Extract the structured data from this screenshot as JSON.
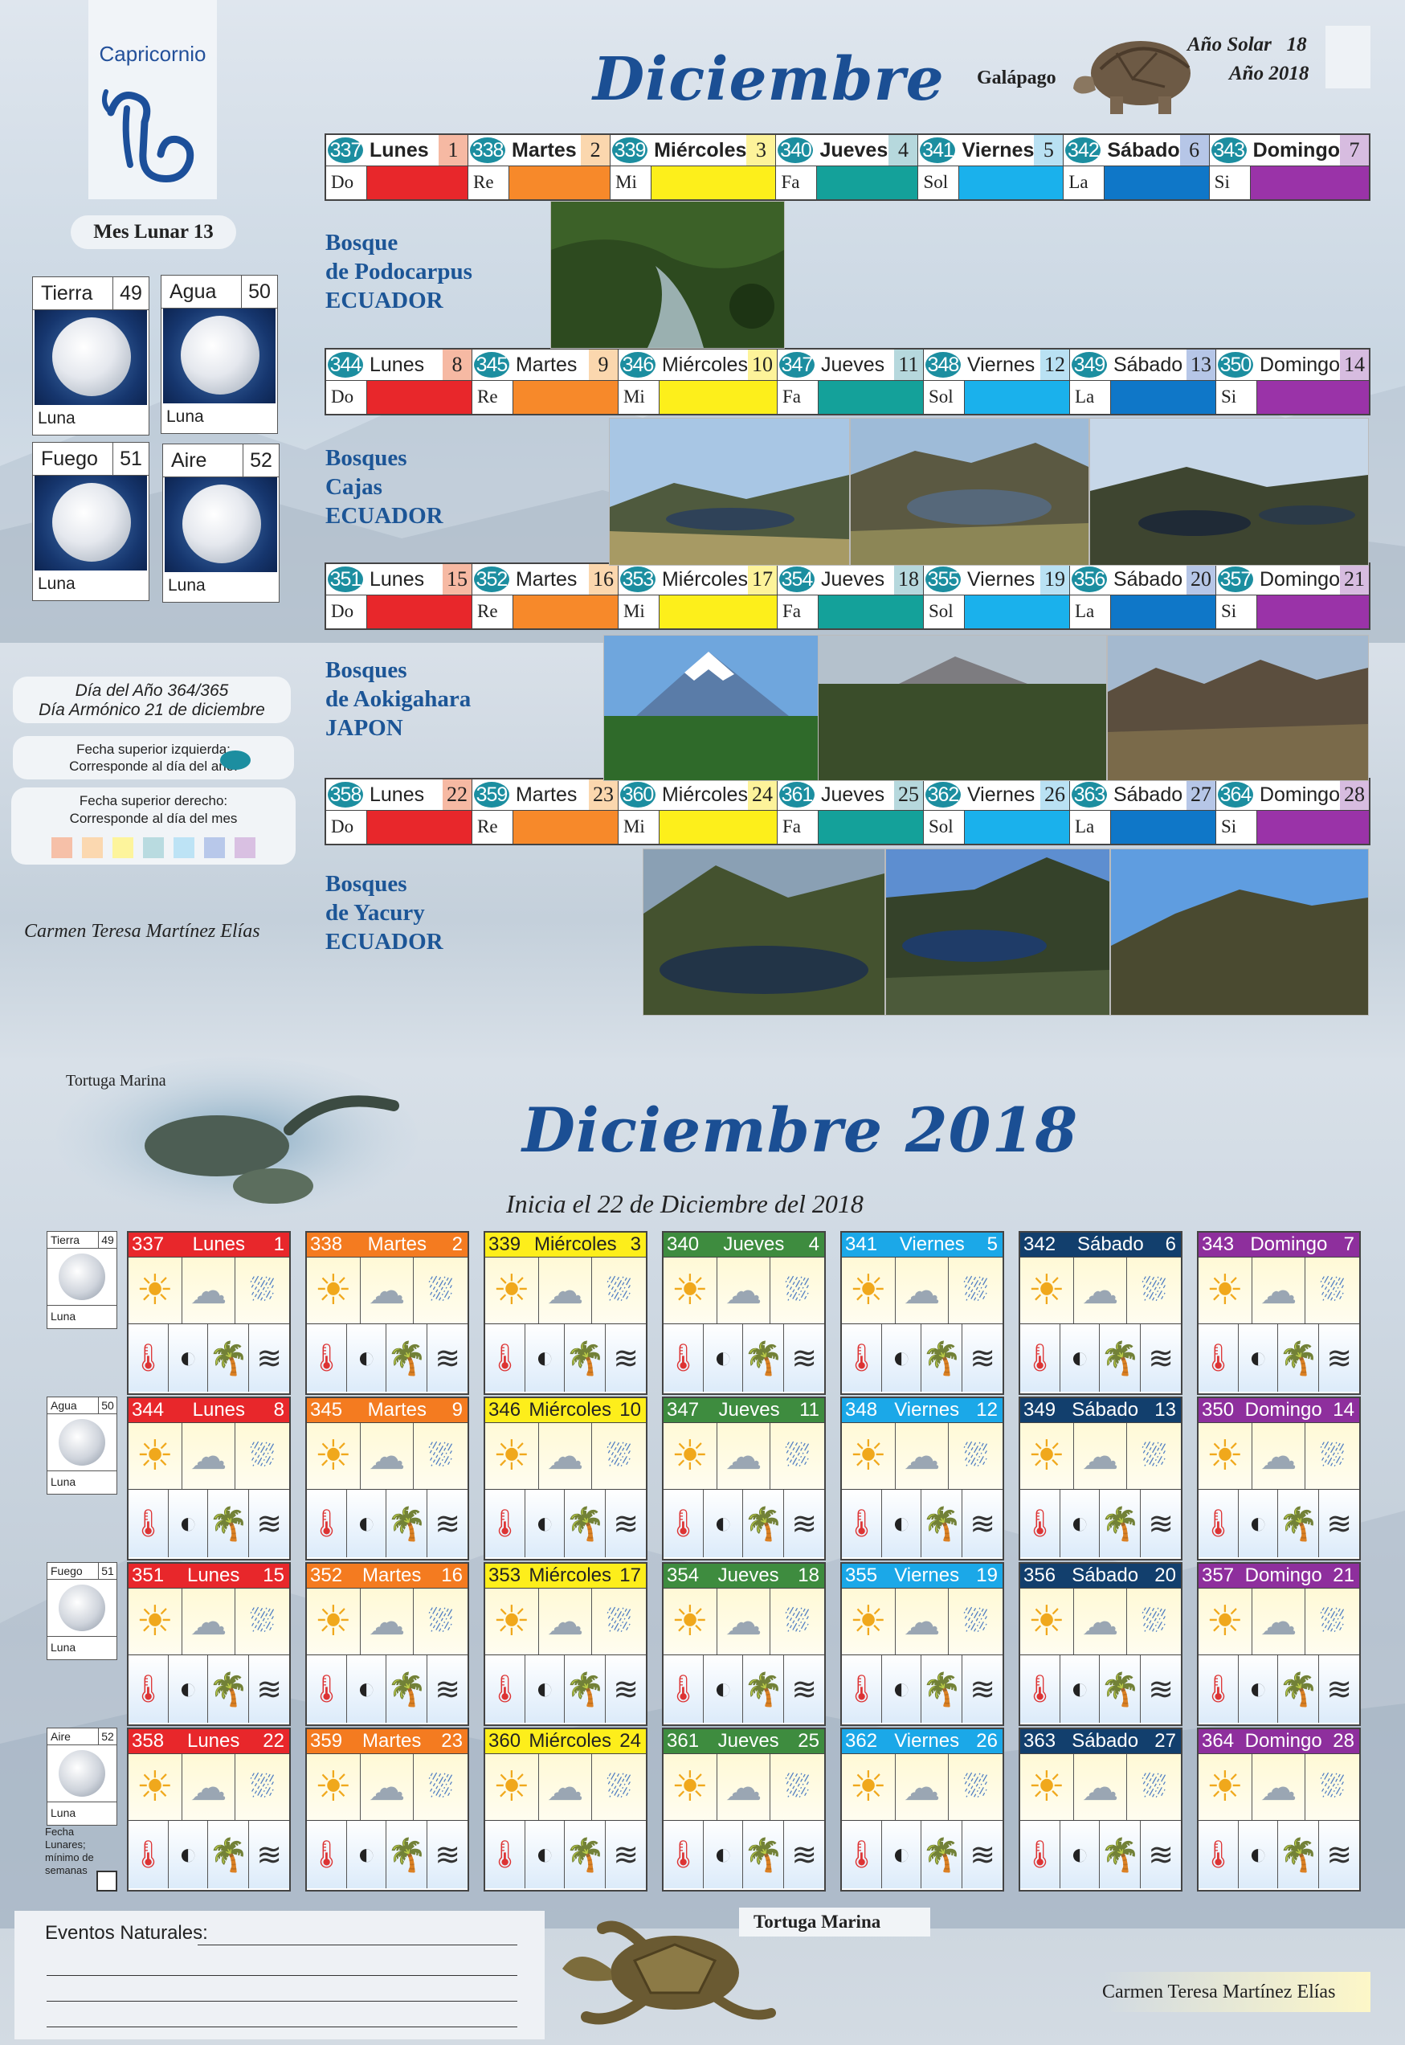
{
  "header": {
    "sign": "Capricornio",
    "month": "Diciembre",
    "animal": "Galápago",
    "solar_year_label": "Año Solar",
    "solar_year_num": "18",
    "year_label": "Año 2018",
    "lunar_month": "Mes Lunar 13"
  },
  "elements": [
    {
      "name": "Tierra",
      "num": "49",
      "foot": "Luna"
    },
    {
      "name": "Agua",
      "num": "50",
      "foot": "Luna"
    },
    {
      "name": "Fuego",
      "num": "51",
      "foot": "Luna"
    },
    {
      "name": "Aire",
      "num": "52",
      "foot": "Luna"
    }
  ],
  "info": {
    "day_year": "Día del Año 364/365",
    "day_harm": "Día Armónico 21 de diciembre",
    "upper_left_1": "Fecha superior izquierda:",
    "upper_left_2": "Corresponde al día del año.",
    "upper_right_1": "Fecha superior derecho:",
    "upper_right_2": "Corresponde al día del mes",
    "author": "Carmen Teresa Martínez Elías",
    "swatches": [
      "#f6c0a8",
      "#fbd8b0",
      "#fdf49c",
      "#b9dbe0",
      "#bde3f5",
      "#b8c8ea",
      "#d9c0e2"
    ]
  },
  "notes": [
    "Do",
    "Re",
    "Mi",
    "Fa",
    "Sol",
    "La",
    "Si"
  ],
  "day_colors": [
    "#e8272b",
    "#f7892a",
    "#fdef1b",
    "#14a19a",
    "#1ab1ec",
    "#0f77c8",
    "#9a33a8"
  ],
  "date_colors": [
    "#f6b9a3",
    "#fbd7ae",
    "#fdf39a",
    "#b6d8dd",
    "#b9e1f3",
    "#b6c6e7",
    "#d7bce0"
  ],
  "weeks": [
    {
      "days": [
        {
          "n": "337",
          "d": "Lunes",
          "dt": "1"
        },
        {
          "n": "338",
          "d": "Martes",
          "dt": "2"
        },
        {
          "n": "339",
          "d": "Miércoles",
          "dt": "3"
        },
        {
          "n": "340",
          "d": "Jueves",
          "dt": "4"
        },
        {
          "n": "341",
          "d": "Viernes",
          "dt": "5"
        },
        {
          "n": "342",
          "d": "Sábado",
          "dt": "6"
        },
        {
          "n": "343",
          "d": "Domingo",
          "dt": "7"
        }
      ],
      "label": [
        "Bosque",
        "de Podocarpus",
        "ECUADOR"
      ]
    },
    {
      "days": [
        {
          "n": "344",
          "d": "Lunes",
          "dt": "8"
        },
        {
          "n": "345",
          "d": "Martes",
          "dt": "9"
        },
        {
          "n": "346",
          "d": "Miércoles",
          "dt": "10"
        },
        {
          "n": "347",
          "d": "Jueves",
          "dt": "11"
        },
        {
          "n": "348",
          "d": "Viernes",
          "dt": "12"
        },
        {
          "n": "349",
          "d": "Sábado",
          "dt": "13"
        },
        {
          "n": "350",
          "d": "Domingo",
          "dt": "14"
        }
      ],
      "label": [
        "Bosques",
        "Cajas",
        "ECUADOR"
      ]
    },
    {
      "days": [
        {
          "n": "351",
          "d": "Lunes",
          "dt": "15"
        },
        {
          "n": "352",
          "d": "Martes",
          "dt": "16"
        },
        {
          "n": "353",
          "d": "Miércoles",
          "dt": "17"
        },
        {
          "n": "354",
          "d": "Jueves",
          "dt": "18"
        },
        {
          "n": "355",
          "d": "Viernes",
          "dt": "19"
        },
        {
          "n": "356",
          "d": "Sábado",
          "dt": "20"
        },
        {
          "n": "357",
          "d": "Domingo",
          "dt": "21"
        }
      ],
      "label": [
        "Bosques",
        "de Aokigahara",
        "JAPON"
      ]
    },
    {
      "days": [
        {
          "n": "358",
          "d": "Lunes",
          "dt": "22"
        },
        {
          "n": "359",
          "d": "Martes",
          "dt": "23"
        },
        {
          "n": "360",
          "d": "Miércoles",
          "dt": "24"
        },
        {
          "n": "361",
          "d": "Jueves",
          "dt": "25"
        },
        {
          "n": "362",
          "d": "Viernes",
          "dt": "26"
        },
        {
          "n": "363",
          "d": "Sábado",
          "dt": "27"
        },
        {
          "n": "364",
          "d": "Domingo",
          "dt": "28"
        }
      ],
      "label": [
        "Bosques",
        "de Yacury",
        "ECUADOR"
      ]
    }
  ],
  "bottom": {
    "title": "Diciembre 2018",
    "subtitle": "Inicia el 22 de Diciembre del 2018",
    "turtle_label": "Tortuga Marina",
    "head_colors": [
      "#e8272b",
      "#f47b20",
      "#fdee1b",
      "#3e8c3f",
      "#1ba8e8",
      "#123f6d",
      "#8e2f9d"
    ],
    "head_text": [
      "#ffffff",
      "#ffffff",
      "#222222",
      "#ffffff",
      "#ffffff",
      "#ffffff",
      "#ffffff"
    ],
    "side_cards": [
      {
        "name": "Tierra",
        "num": "49",
        "foot": "Luna"
      },
      {
        "name": "Agua",
        "num": "50",
        "foot": "Luna"
      },
      {
        "name": "Fuego",
        "num": "51",
        "foot": "Luna"
      },
      {
        "name": "Aire",
        "num": "52",
        "foot": "Luna"
      }
    ],
    "lunar_note_1": "Fecha",
    "lunar_note_2": "Lunares;",
    "lunar_note_3": "mínimo de",
    "lunar_note_4": "semanas",
    "events_label": "Eventos Naturales:",
    "author": "Carmen Teresa Martínez Elías",
    "icons_row1": [
      "sun-icon",
      "cloud-icon",
      "rain-icon"
    ],
    "icons_row2": [
      "thermometer-icon",
      "half-moon-icon",
      "palm-tree-icon",
      "wind-icon"
    ]
  }
}
